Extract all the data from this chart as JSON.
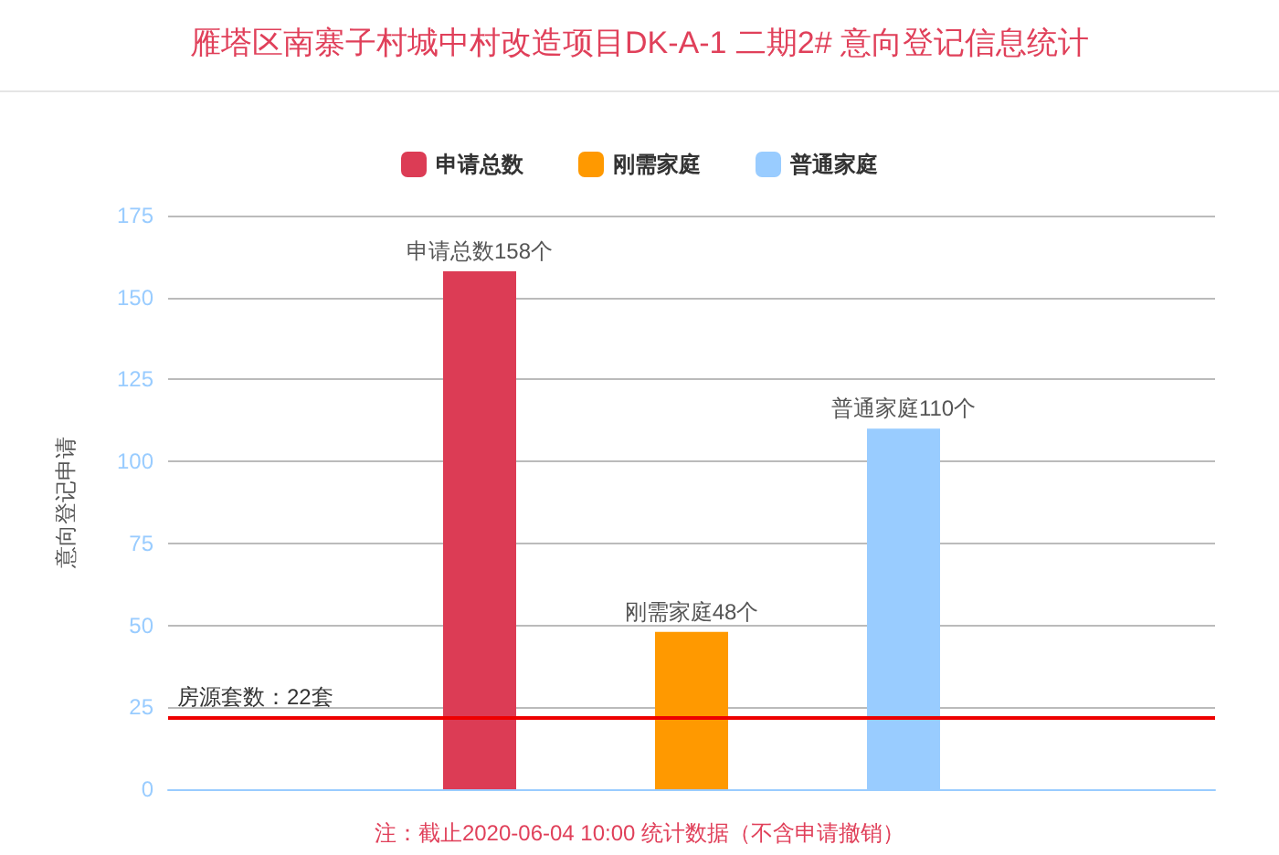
{
  "chart_data": {
    "type": "bar",
    "title": "雁塔区南寨子村城中村改造项目DK-A-1 二期2# 意向登记信息统计",
    "ylabel": "意向登记申请",
    "categories": [
      null
    ],
    "series": [
      {
        "name": "申请总数",
        "color": "#dc3c55",
        "values": [
          158
        ],
        "value_labels": [
          "申请总数158个"
        ]
      },
      {
        "name": "刚需家庭",
        "color": "#ff9900",
        "values": [
          48
        ],
        "value_labels": [
          "刚需家庭48个"
        ]
      },
      {
        "name": "普通家庭",
        "color": "#99ccff",
        "values": [
          110
        ],
        "value_labels": [
          "普通家庭110个"
        ]
      }
    ],
    "ylim": [
      0,
      175
    ],
    "yticks": [
      0,
      25,
      50,
      75,
      100,
      125,
      150,
      175
    ],
    "grid": "y",
    "legend": "top",
    "ref_lines": [
      {
        "axis": "y",
        "value": 22,
        "label": "房源套数：22套",
        "color": "#ee0000"
      }
    ],
    "annotations": [
      "注：截止2020-06-04 10:00 统计数据（不含申请撤销）"
    ]
  }
}
